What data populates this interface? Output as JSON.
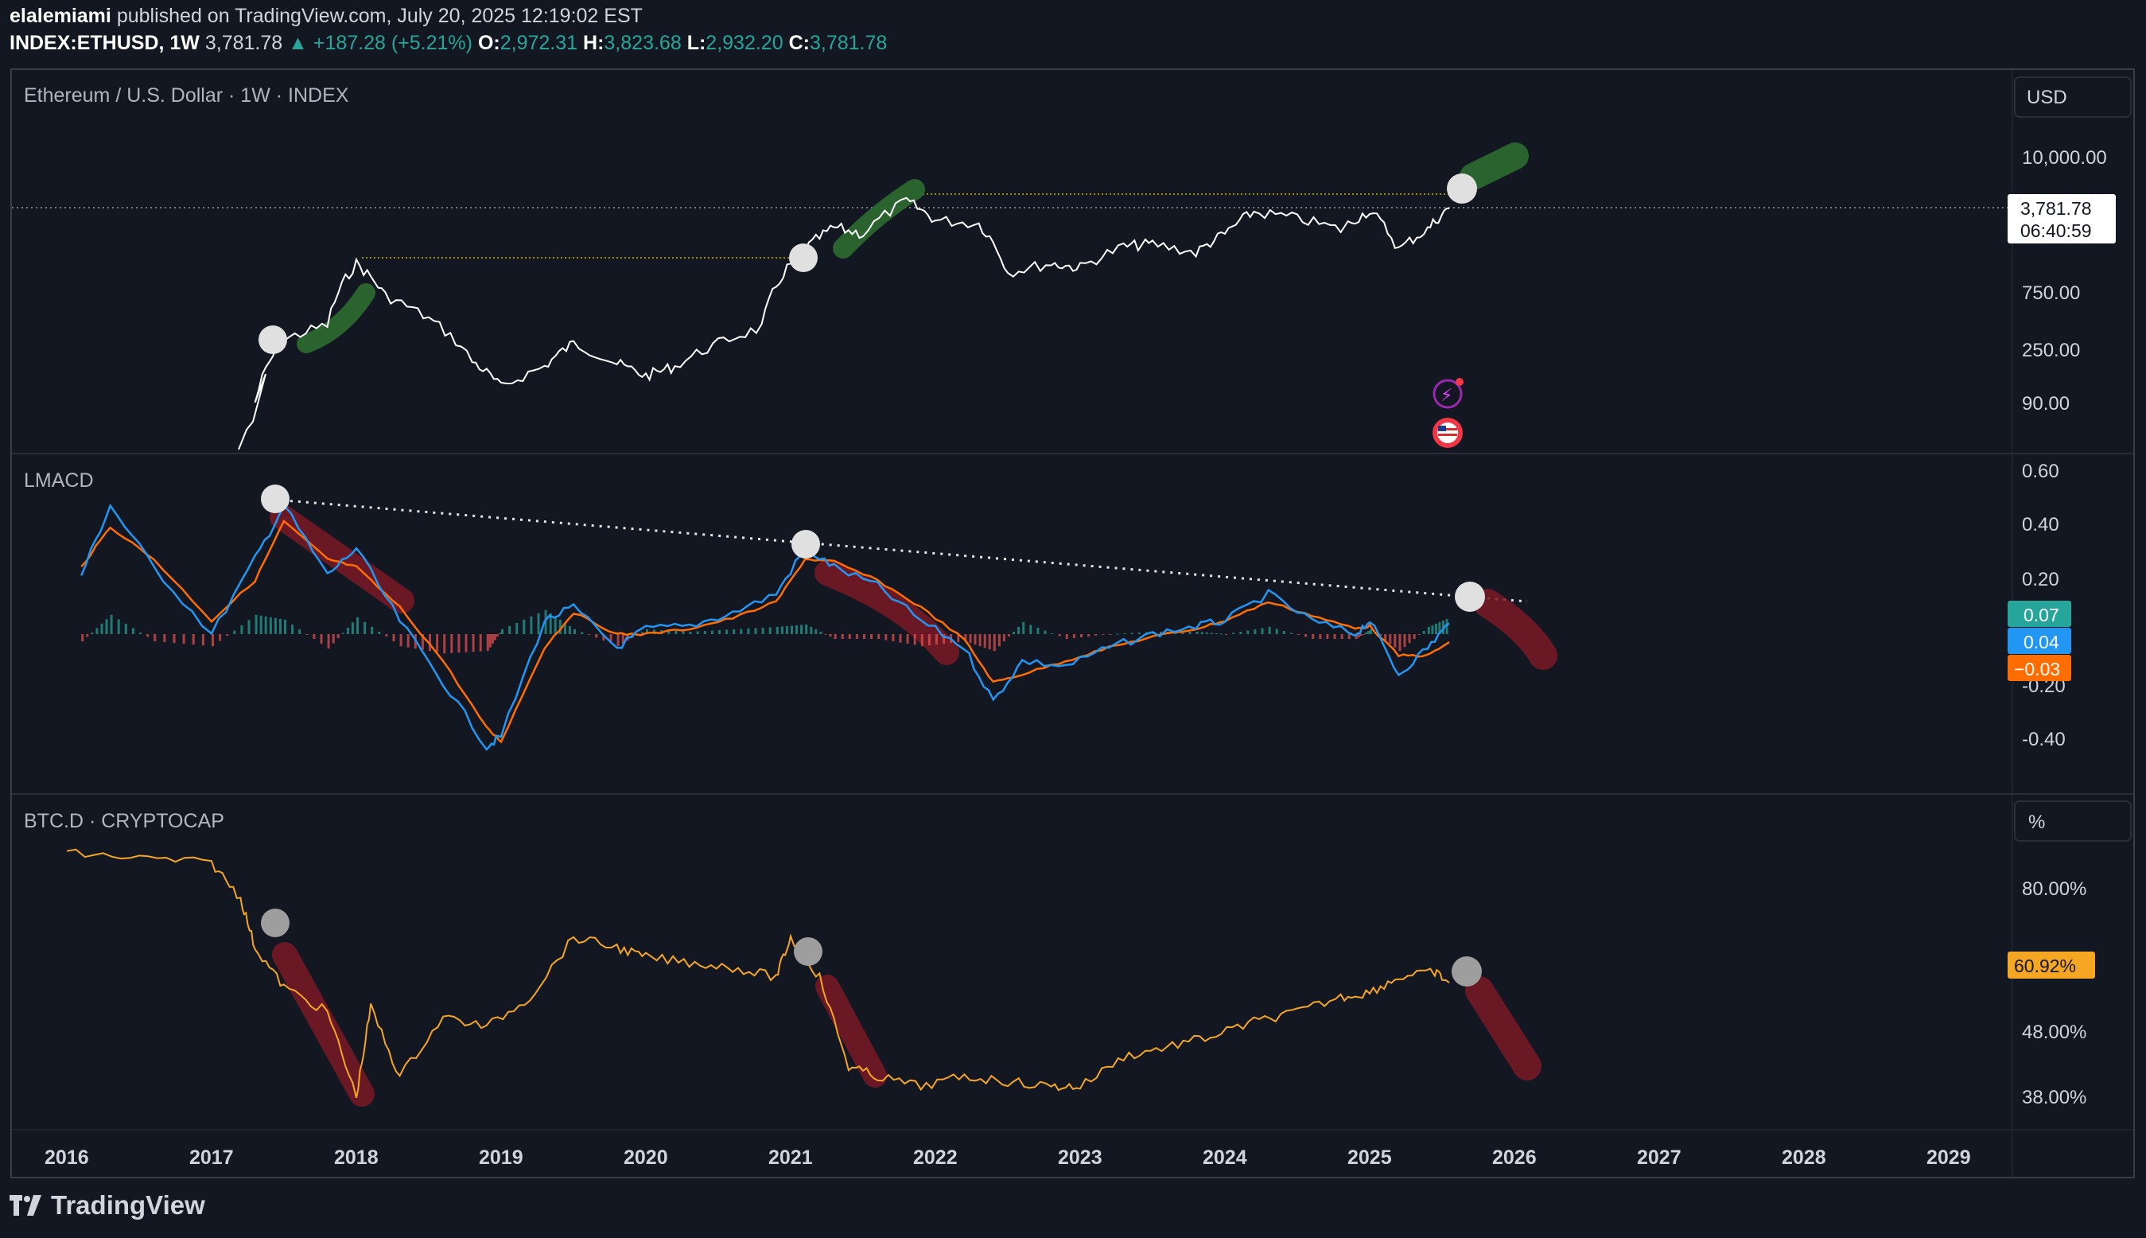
{
  "header": {
    "author": "elalemiami",
    "published": "published on TradingView.com, July 20, 2025 12:19:02 EST",
    "symbol": "INDEX:ETHUSD, 1W",
    "last": "3,781.78",
    "change": "+187.28 (+5.21%)",
    "o_label": "O:",
    "o_value": "2,972.31",
    "h_label": "H:",
    "h_value": "3,823.68",
    "l_label": "L:",
    "l_value": "2,932.20",
    "c_label": "C:",
    "c_value": "3,781.78"
  },
  "colors": {
    "background": "#131722",
    "price_line": "#ffffff",
    "macd_line": "#2196f3",
    "signal_line": "#ff6d00",
    "hist_pos": "#26a69a",
    "hist_neg": "#ef5350",
    "btcd_line": "#f5a623",
    "bull_marker": "#2e7d32",
    "bear_marker": "#8b1e2a"
  },
  "footer": {
    "logo_text": "TradingView"
  },
  "chart_data": [
    {
      "type": "line",
      "title": "Ethereum / U.S. Dollar · 1W · INDEX",
      "currency_button": "USD",
      "scale": "log",
      "y_ticks": [
        "10,000.00",
        "750.00",
        "250.00",
        "90.00"
      ],
      "last_price_label": "3,781.78",
      "countdown_label": "06:40:59",
      "x": [
        2016.1,
        2016.5,
        2017.0,
        2017.3,
        2017.5,
        2017.8,
        2018.0,
        2018.2,
        2018.5,
        2018.8,
        2019.0,
        2019.3,
        2019.5,
        2019.8,
        2020.0,
        2020.2,
        2020.5,
        2020.8,
        2021.0,
        2021.1,
        2021.3,
        2021.5,
        2021.8,
        2022.0,
        2022.3,
        2022.5,
        2022.8,
        2023.0,
        2023.3,
        2023.5,
        2023.8,
        2024.0,
        2024.2,
        2024.5,
        2024.8,
        2025.0,
        2025.2,
        2025.4,
        2025.55
      ],
      "y": [
        1,
        10,
        15,
        90,
        300,
        400,
        1300,
        700,
        450,
        200,
        120,
        180,
        280,
        190,
        150,
        180,
        280,
        380,
        1300,
        1700,
        2600,
        2300,
        4300,
        3000,
        2800,
        1100,
        1300,
        1200,
        1800,
        1900,
        1600,
        2300,
        3500,
        3100,
        2500,
        3600,
        1700,
        2500,
        3781.78
      ],
      "annotations": [
        "bullish projection markers",
        "prior high resistance dotted lines"
      ]
    },
    {
      "type": "line",
      "title": "LMACD",
      "y_ticks": [
        "0.60",
        "0.40",
        "0.20",
        "-0.20",
        "-0.40"
      ],
      "series": [
        {
          "name": "",
          "values_label": "0.07"
        },
        {
          "name": "",
          "values_label": "0.04"
        },
        {
          "name": "",
          "values_label": "−0.03"
        }
      ],
      "x": [
        2016.1,
        2016.3,
        2016.6,
        2017.0,
        2017.3,
        2017.5,
        2017.8,
        2018.0,
        2018.3,
        2018.6,
        2018.9,
        2019.0,
        2019.3,
        2019.5,
        2019.8,
        2020.0,
        2020.3,
        2020.6,
        2020.9,
        2021.1,
        2021.3,
        2021.6,
        2021.9,
        2022.2,
        2022.4,
        2022.6,
        2022.9,
        2023.2,
        2023.5,
        2023.8,
        2024.0,
        2024.3,
        2024.6,
        2024.9,
        2025.0,
        2025.2,
        2025.4,
        2025.55
      ],
      "macd": [
        0.22,
        0.48,
        0.25,
        0.0,
        0.28,
        0.48,
        0.22,
        0.32,
        0.05,
        -0.18,
        -0.42,
        -0.38,
        0.05,
        0.1,
        -0.05,
        0.02,
        0.03,
        0.08,
        0.15,
        0.32,
        0.25,
        0.18,
        0.05,
        -0.05,
        -0.25,
        -0.1,
        -0.12,
        -0.05,
        0.0,
        0.03,
        0.05,
        0.15,
        0.05,
        0.0,
        0.05,
        -0.15,
        -0.05,
        0.04
      ],
      "signal": [
        0.25,
        0.4,
        0.28,
        0.05,
        0.2,
        0.42,
        0.28,
        0.25,
        0.1,
        -0.1,
        -0.35,
        -0.4,
        -0.05,
        0.08,
        0.0,
        0.0,
        0.02,
        0.06,
        0.12,
        0.28,
        0.27,
        0.2,
        0.1,
        -0.02,
        -0.18,
        -0.15,
        -0.1,
        -0.05,
        -0.01,
        0.02,
        0.05,
        0.12,
        0.07,
        0.02,
        0.03,
        -0.08,
        -0.08,
        -0.03
      ]
    },
    {
      "type": "line",
      "title": "BTC.D · CRYPTOCAP",
      "currency_button": "%",
      "y_ticks": [
        "80.00%",
        "48.00%",
        "38.00%"
      ],
      "last_value_label": "60.92%",
      "x": [
        2016.0,
        2016.5,
        2017.0,
        2017.2,
        2017.3,
        2017.5,
        2017.8,
        2018.0,
        2018.1,
        2018.3,
        2018.6,
        2018.9,
        2019.2,
        2019.5,
        2019.8,
        2020.0,
        2020.3,
        2020.6,
        2020.9,
        2021.0,
        2021.2,
        2021.4,
        2021.6,
        2021.9,
        2022.2,
        2022.5,
        2022.8,
        2023.0,
        2023.3,
        2023.6,
        2023.9,
        2024.2,
        2024.5,
        2024.8,
        2025.0,
        2025.2,
        2025.45,
        2025.55
      ],
      "values": [
        87,
        86,
        85,
        78,
        68,
        60,
        55,
        38,
        56,
        42,
        54,
        52,
        58,
        70,
        68,
        66,
        65,
        64,
        62,
        70,
        62,
        44,
        42,
        40,
        42,
        41,
        40,
        40,
        46,
        48,
        50,
        53,
        55,
        58,
        59,
        62,
        63,
        60.92
      ],
      "x_ticks": [
        "2016",
        "2017",
        "2018",
        "2019",
        "2020",
        "2021",
        "2022",
        "2023",
        "2024",
        "2025",
        "2026",
        "2027",
        "2028",
        "2029"
      ]
    }
  ]
}
